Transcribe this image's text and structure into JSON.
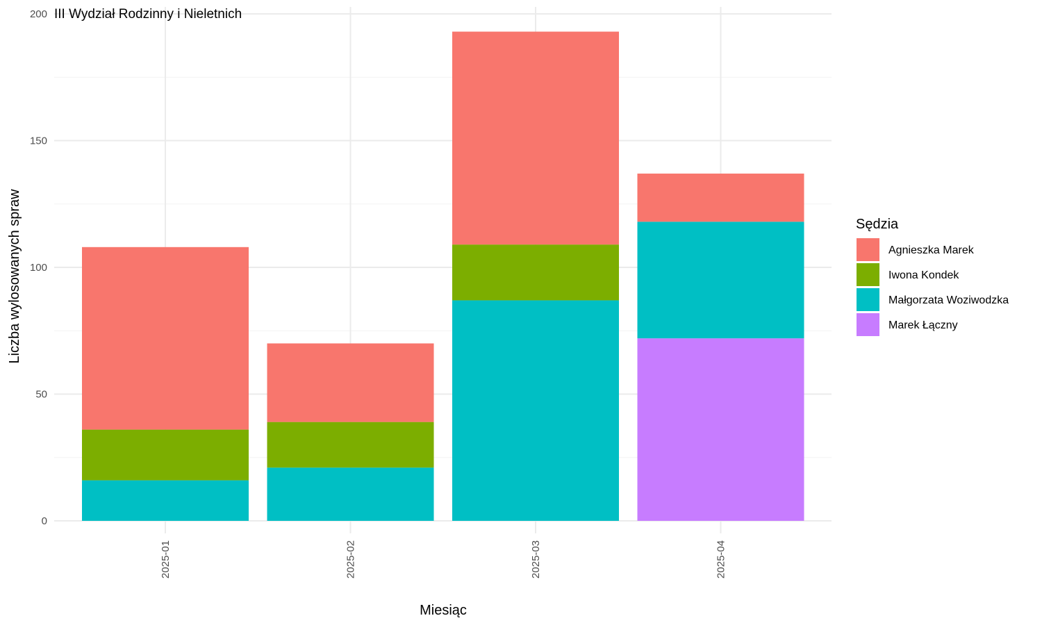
{
  "chart_data": {
    "type": "bar",
    "stacked": true,
    "title": "III Wydział Rodzinny i Nieletnich",
    "xlabel": "Miesiąc",
    "ylabel": "Liczba wylosowanych spraw",
    "categories": [
      "2025-01",
      "2025-02",
      "2025-03",
      "2025-04"
    ],
    "ylim": [
      0,
      200
    ],
    "yticks": [
      0,
      50,
      100,
      150,
      200
    ],
    "grid": true,
    "legend": {
      "title": "Sędzia",
      "placement": "right"
    },
    "series": [
      {
        "name": "Marek Łączny",
        "color": "#C77CFF",
        "values": [
          0,
          0,
          0,
          72
        ]
      },
      {
        "name": "Małgorzata Woziwodzka",
        "color": "#00BFC4",
        "values": [
          16,
          21,
          87,
          46
        ]
      },
      {
        "name": "Iwona Kondek",
        "color": "#7CAE00",
        "values": [
          20,
          18,
          22,
          0
        ]
      },
      {
        "name": "Agnieszka Marek",
        "color": "#F8766D",
        "values": [
          72,
          31,
          84,
          19
        ]
      }
    ],
    "legend_order": [
      "Agnieszka Marek",
      "Iwona Kondek",
      "Małgorzata Woziwodzka",
      "Marek Łączny"
    ]
  }
}
